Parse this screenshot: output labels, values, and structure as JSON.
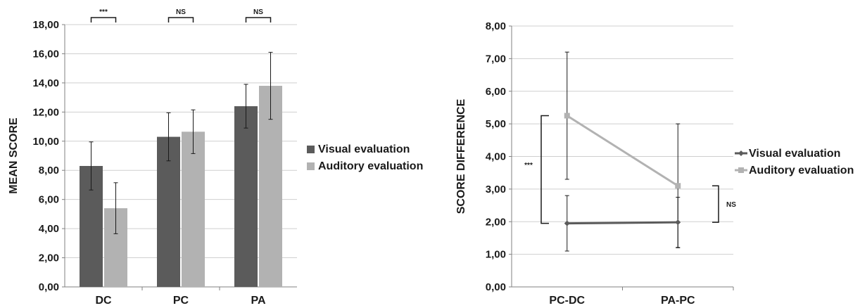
{
  "chart_data": [
    {
      "type": "bar",
      "ylabel": "MEAN SCORE",
      "ylim": [
        0,
        18
      ],
      "yticks": [
        "0,00",
        "2,00",
        "4,00",
        "6,00",
        "8,00",
        "10,00",
        "12,00",
        "14,00",
        "16,00",
        "18,00"
      ],
      "categories": [
        "DC",
        "PC",
        "PA"
      ],
      "grid": true,
      "legend_position": "right",
      "series": [
        {
          "name": "Visual evaluation",
          "color": "#5b5b5b",
          "values": [
            8.3,
            10.3,
            12.4
          ],
          "error": [
            1.65,
            1.65,
            1.5
          ]
        },
        {
          "name": "Auditory evaluation",
          "color": "#b2b2b2",
          "values": [
            5.4,
            10.65,
            13.8
          ],
          "error": [
            1.75,
            1.5,
            2.3
          ]
        }
      ],
      "significance": [
        "***",
        "NS",
        "NS"
      ]
    },
    {
      "type": "line",
      "ylabel": "SCORE DIFFERENCE",
      "ylim": [
        0,
        8
      ],
      "yticks": [
        "0,00",
        "1,00",
        "2,00",
        "3,00",
        "4,00",
        "5,00",
        "6,00",
        "7,00",
        "8,00"
      ],
      "categories": [
        "PC-DC",
        "PA-PC"
      ],
      "grid": true,
      "legend_position": "right",
      "series": [
        {
          "name": "Visual evaluation",
          "color": "#5b5b5b",
          "values": [
            1.95,
            1.98
          ],
          "error": [
            0.85,
            0.77
          ]
        },
        {
          "name": "Auditory evaluation",
          "color": "#b2b2b2",
          "values": [
            5.25,
            3.1
          ],
          "error": [
            1.95,
            1.9
          ]
        }
      ],
      "significance": [
        {
          "label": "***",
          "from": 1.95,
          "to": 5.25
        },
        {
          "label": "NS",
          "from": 1.98,
          "to": 3.1
        }
      ]
    }
  ]
}
